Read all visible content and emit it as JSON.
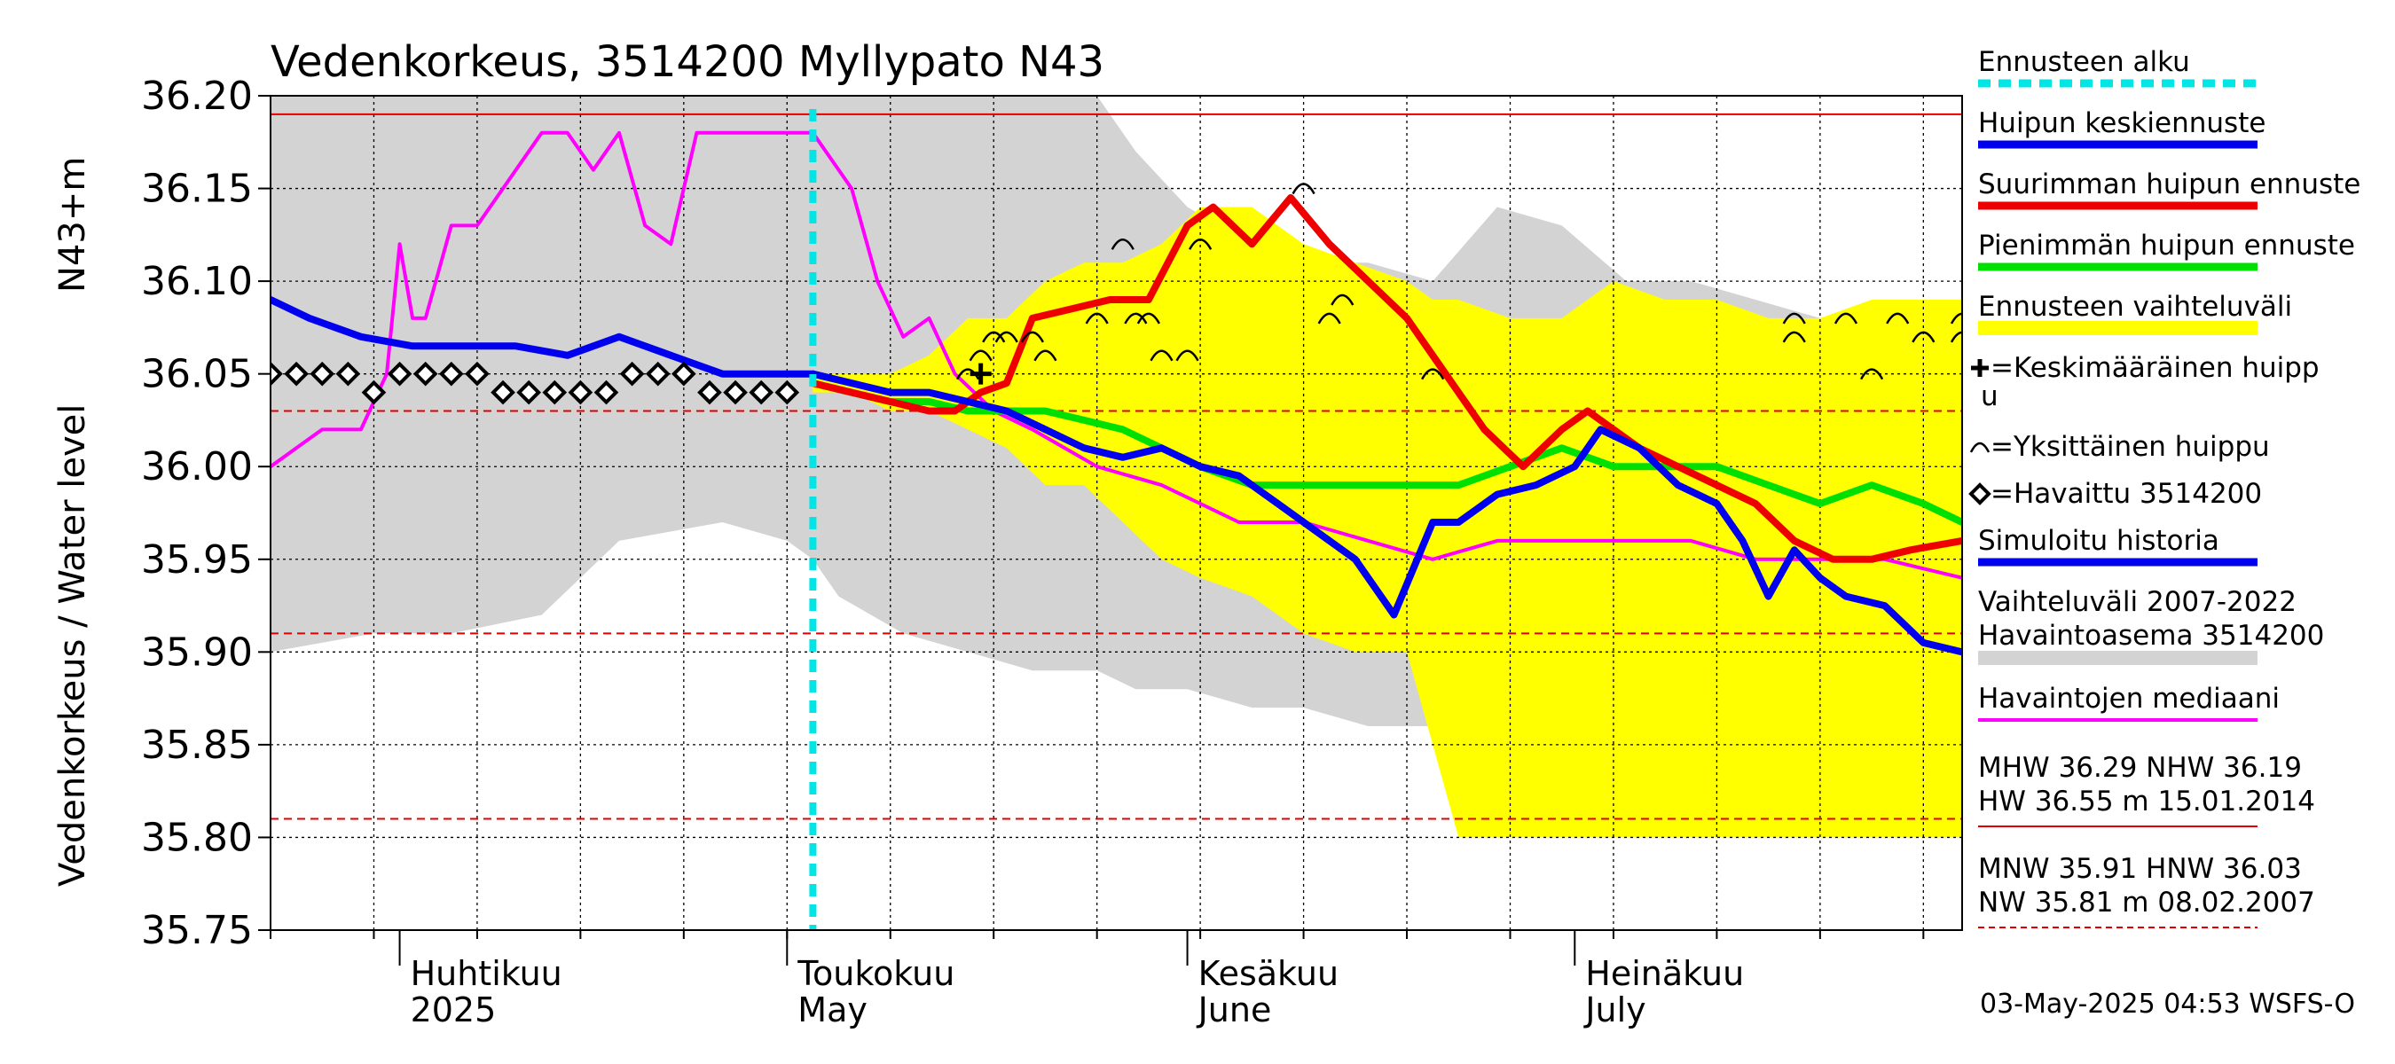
{
  "chart_data": {
    "type": "line",
    "title": "Vedenkorkeus, 3514200 Myllypato N43",
    "ylabel": "Vedenkorkeus / Water level",
    "yunit": "N43+m",
    "ylim": [
      35.75,
      36.2
    ],
    "yticks": [
      "36.20",
      "36.15",
      "36.10",
      "36.05",
      "36.00",
      "35.95",
      "35.90",
      "35.85",
      "35.80",
      "35.75"
    ],
    "xlim": [
      "2025-03-22",
      "2025-07-31"
    ],
    "forecast_start": "2025-05-03",
    "months": [
      {
        "date": "2025-04-01",
        "label_fi": "Huhtikuu",
        "label_en": "2025"
      },
      {
        "date": "2025-05-01",
        "label_fi": "Toukokuu",
        "label_en": "May"
      },
      {
        "date": "2025-06-01",
        "label_fi": "Kesäkuu",
        "label_en": "June"
      },
      {
        "date": "2025-07-01",
        "label_fi": "Heinäkuu",
        "label_en": "July"
      }
    ],
    "reference_lines": [
      {
        "name": "NHW",
        "value": 36.19,
        "style": "solid",
        "color": "#e00000"
      },
      {
        "name": "HNW",
        "value": 36.03,
        "style": "dashed",
        "color": "#e00000"
      },
      {
        "name": "MNW",
        "value": 35.91,
        "style": "dashed",
        "color": "#e00000"
      },
      {
        "name": "NW",
        "value": 35.81,
        "style": "dashed",
        "color": "#e00000"
      }
    ],
    "history_range": {
      "name": "Vaihteluväli 2007-2022 Havaintoasema 3514200",
      "color": "#d3d3d3",
      "x": [
        "2025-03-22",
        "2025-03-30",
        "2025-04-05",
        "2025-04-12",
        "2025-04-18",
        "2025-04-26",
        "2025-05-01",
        "2025-05-03",
        "2025-05-05",
        "2025-05-10",
        "2025-05-15",
        "2025-05-20",
        "2025-05-25",
        "2025-05-28",
        "2025-06-01",
        "2025-06-06",
        "2025-06-10",
        "2025-06-15",
        "2025-06-20",
        "2025-06-25",
        "2025-06-30",
        "2025-07-05",
        "2025-07-10",
        "2025-07-15",
        "2025-07-20",
        "2025-07-25",
        "2025-07-31"
      ],
      "upper": [
        36.2,
        36.2,
        36.2,
        36.2,
        36.2,
        36.2,
        36.2,
        36.2,
        36.2,
        36.2,
        36.2,
        36.2,
        36.2,
        36.17,
        36.14,
        36.12,
        36.11,
        36.11,
        36.1,
        36.14,
        36.13,
        36.1,
        36.1,
        36.09,
        36.08,
        36.08,
        36.07
      ],
      "lower": [
        35.9,
        35.91,
        35.91,
        35.92,
        35.96,
        35.97,
        35.96,
        35.95,
        35.93,
        35.91,
        35.9,
        35.89,
        35.89,
        35.88,
        35.88,
        35.87,
        35.87,
        35.86,
        35.86,
        35.86,
        35.86,
        35.86,
        35.86,
        35.86,
        35.86,
        35.86,
        35.86
      ]
    },
    "forecast_range": {
      "name": "Ennusteen vaihteluväli",
      "color": "#ffff00",
      "x": [
        "2025-05-03",
        "2025-05-06",
        "2025-05-09",
        "2025-05-12",
        "2025-05-15",
        "2025-05-18",
        "2025-05-21",
        "2025-05-24",
        "2025-05-27",
        "2025-05-30",
        "2025-06-02",
        "2025-06-06",
        "2025-06-10",
        "2025-06-14",
        "2025-06-18",
        "2025-06-20",
        "2025-06-22",
        "2025-06-26",
        "2025-06-30",
        "2025-07-04",
        "2025-07-08",
        "2025-07-12",
        "2025-07-16",
        "2025-07-20",
        "2025-07-24",
        "2025-07-28",
        "2025-07-31"
      ],
      "upper": [
        36.05,
        36.05,
        36.05,
        36.06,
        36.08,
        36.08,
        36.1,
        36.11,
        36.11,
        36.12,
        36.14,
        36.14,
        36.12,
        36.11,
        36.1,
        36.09,
        36.09,
        36.08,
        36.08,
        36.1,
        36.09,
        36.09,
        36.08,
        36.08,
        36.09,
        36.09,
        36.09
      ],
      "lower": [
        36.04,
        36.04,
        36.03,
        36.03,
        36.02,
        36.01,
        35.99,
        35.99,
        35.97,
        35.95,
        35.94,
        35.93,
        35.91,
        35.9,
        35.9,
        35.85,
        35.8,
        35.8,
        35.8,
        35.8,
        35.8,
        35.8,
        35.8,
        35.8,
        35.8,
        35.8,
        35.8
      ]
    },
    "series": [
      {
        "name": "Havaintojen mediaani",
        "color": "#ff00ff",
        "width": 4,
        "x": [
          "2025-03-22",
          "2025-03-24",
          "2025-03-26",
          "2025-03-29",
          "2025-03-31",
          "2025-04-01",
          "2025-04-02",
          "2025-04-03",
          "2025-04-05",
          "2025-04-07",
          "2025-04-09",
          "2025-04-12",
          "2025-04-14",
          "2025-04-16",
          "2025-04-18",
          "2025-04-20",
          "2025-04-22",
          "2025-04-24",
          "2025-04-26",
          "2025-04-28",
          "2025-05-01",
          "2025-05-03",
          "2025-05-06",
          "2025-05-08",
          "2025-05-10",
          "2025-05-12",
          "2025-05-14",
          "2025-05-17",
          "2025-05-20",
          "2025-05-25",
          "2025-05-30",
          "2025-06-05",
          "2025-06-10",
          "2025-06-15",
          "2025-06-20",
          "2025-06-25",
          "2025-06-30",
          "2025-07-05",
          "2025-07-10",
          "2025-07-15",
          "2025-07-20",
          "2025-07-25",
          "2025-07-31"
        ],
        "values": [
          36.0,
          36.01,
          36.02,
          36.02,
          36.05,
          36.12,
          36.08,
          36.08,
          36.13,
          36.13,
          36.15,
          36.18,
          36.18,
          36.16,
          36.18,
          36.13,
          36.12,
          36.18,
          36.18,
          36.18,
          36.18,
          36.18,
          36.15,
          36.1,
          36.07,
          36.08,
          36.05,
          36.03,
          36.02,
          36.0,
          35.99,
          35.97,
          35.97,
          35.96,
          35.95,
          35.96,
          35.96,
          35.96,
          35.96,
          35.95,
          35.95,
          35.95,
          35.94
        ]
      },
      {
        "name": "Simuloitu historia",
        "color": "#0000ee",
        "width": 8,
        "x": [
          "2025-03-22",
          "2025-03-25",
          "2025-03-29",
          "2025-04-02",
          "2025-04-06",
          "2025-04-10",
          "2025-04-14",
          "2025-04-18",
          "2025-04-22",
          "2025-04-26",
          "2025-04-30",
          "2025-05-03"
        ],
        "values": [
          36.09,
          36.08,
          36.07,
          36.065,
          36.065,
          36.065,
          36.06,
          36.07,
          36.06,
          36.05,
          36.05,
          36.05
        ]
      },
      {
        "name": "Pienimmän huipun ennuste",
        "color": "#00e000",
        "width": 8,
        "x": [
          "2025-05-03",
          "2025-05-06",
          "2025-05-09",
          "2025-05-12",
          "2025-05-15",
          "2025-05-18",
          "2025-05-21",
          "2025-05-24",
          "2025-05-27",
          "2025-05-30",
          "2025-06-02",
          "2025-06-06",
          "2025-06-10",
          "2025-06-14",
          "2025-06-18",
          "2025-06-22",
          "2025-06-26",
          "2025-06-30",
          "2025-07-04",
          "2025-07-08",
          "2025-07-12",
          "2025-07-16",
          "2025-07-20",
          "2025-07-24",
          "2025-07-28",
          "2025-07-31"
        ],
        "values": [
          36.045,
          36.04,
          36.035,
          36.035,
          36.03,
          36.03,
          36.03,
          36.025,
          36.02,
          36.01,
          36.0,
          35.99,
          35.99,
          35.99,
          35.99,
          35.99,
          36.0,
          36.01,
          36.0,
          36.0,
          36.0,
          35.99,
          35.98,
          35.99,
          35.98,
          35.97
        ]
      },
      {
        "name": "Suurimman huipun ennuste",
        "color": "#ee0000",
        "width": 8,
        "x": [
          "2025-05-03",
          "2025-05-06",
          "2025-05-09",
          "2025-05-12",
          "2025-05-14",
          "2025-05-16",
          "2025-05-18",
          "2025-05-20",
          "2025-05-23",
          "2025-05-26",
          "2025-05-29",
          "2025-06-01",
          "2025-06-03",
          "2025-06-06",
          "2025-06-09",
          "2025-06-12",
          "2025-06-15",
          "2025-06-18",
          "2025-06-21",
          "2025-06-24",
          "2025-06-27",
          "2025-06-30",
          "2025-07-02",
          "2025-07-04",
          "2025-07-06",
          "2025-07-09",
          "2025-07-12",
          "2025-07-15",
          "2025-07-18",
          "2025-07-21",
          "2025-07-24",
          "2025-07-27",
          "2025-07-31"
        ],
        "values": [
          36.045,
          36.04,
          36.035,
          36.03,
          36.03,
          36.04,
          36.045,
          36.08,
          36.085,
          36.09,
          36.09,
          36.13,
          36.14,
          36.12,
          36.145,
          36.12,
          36.1,
          36.08,
          36.05,
          36.02,
          36.0,
          36.02,
          36.03,
          36.02,
          36.01,
          36.0,
          35.99,
          35.98,
          35.96,
          35.95,
          35.95,
          35.955,
          35.96
        ]
      },
      {
        "name": "Huipun keskiennuste",
        "color": "#0000ee",
        "width": 8,
        "x": [
          "2025-05-03",
          "2025-05-06",
          "2025-05-09",
          "2025-05-12",
          "2025-05-15",
          "2025-05-18",
          "2025-05-21",
          "2025-05-24",
          "2025-05-27",
          "2025-05-30",
          "2025-06-02",
          "2025-06-05",
          "2025-06-08",
          "2025-06-11",
          "2025-06-14",
          "2025-06-17",
          "2025-06-20",
          "2025-06-22",
          "2025-06-25",
          "2025-06-28",
          "2025-07-01",
          "2025-07-03",
          "2025-07-06",
          "2025-07-09",
          "2025-07-12",
          "2025-07-14",
          "2025-07-16",
          "2025-07-18",
          "2025-07-20",
          "2025-07-22",
          "2025-07-25",
          "2025-07-28",
          "2025-07-31"
        ],
        "values": [
          36.05,
          36.045,
          36.04,
          36.04,
          36.035,
          36.03,
          36.02,
          36.01,
          36.005,
          36.01,
          36.0,
          35.995,
          35.98,
          35.965,
          35.95,
          35.92,
          35.97,
          35.97,
          35.985,
          35.99,
          36.0,
          36.02,
          36.01,
          35.99,
          35.98,
          35.96,
          35.93,
          35.955,
          35.94,
          35.93,
          35.925,
          35.905,
          35.9
        ]
      }
    ],
    "observed": {
      "name": "Havaittu 3514200",
      "marker": "diamond",
      "x": [
        "2025-03-22",
        "2025-03-24",
        "2025-03-26",
        "2025-03-28",
        "2025-03-30",
        "2025-04-01",
        "2025-04-03",
        "2025-04-05",
        "2025-04-07",
        "2025-04-09",
        "2025-04-11",
        "2025-04-13",
        "2025-04-15",
        "2025-04-17",
        "2025-04-19",
        "2025-04-21",
        "2025-04-23",
        "2025-04-25",
        "2025-04-27",
        "2025-04-29",
        "2025-05-01"
      ],
      "values": [
        36.05,
        36.05,
        36.05,
        36.05,
        36.04,
        36.05,
        36.05,
        36.05,
        36.05,
        36.04,
        36.04,
        36.04,
        36.04,
        36.04,
        36.05,
        36.05,
        36.05,
        36.04,
        36.04,
        36.04,
        36.04
      ]
    },
    "single_peaks": {
      "name": "Yksittäinen huippu",
      "x": [
        "2025-05-15",
        "2025-05-16",
        "2025-05-17",
        "2025-05-18",
        "2025-05-20",
        "2025-05-21",
        "2025-05-25",
        "2025-05-27",
        "2025-05-28",
        "2025-05-29",
        "2025-05-30",
        "2025-06-01",
        "2025-06-02",
        "2025-06-10",
        "2025-06-12",
        "2025-06-13",
        "2025-06-20",
        "2025-07-18",
        "2025-07-18",
        "2025-07-22",
        "2025-07-24",
        "2025-07-26",
        "2025-07-28",
        "2025-07-31",
        "2025-07-31"
      ],
      "values": [
        36.05,
        36.06,
        36.07,
        36.07,
        36.07,
        36.06,
        36.08,
        36.12,
        36.08,
        36.08,
        36.06,
        36.06,
        36.12,
        36.15,
        36.08,
        36.09,
        36.05,
        36.08,
        36.07,
        36.08,
        36.05,
        36.08,
        36.07,
        36.08,
        36.07
      ]
    },
    "mean_peak": {
      "name": "Keskimääräinen huippu",
      "x": "2025-05-16",
      "value": 36.05
    },
    "legend": [
      {
        "label": "Ennusteen alku",
        "kind": "dashed",
        "color": "#00e5e5"
      },
      {
        "label": "Huipun keskiennuste",
        "kind": "line",
        "color": "#0000ee"
      },
      {
        "label": "Suurimman huipun ennuste",
        "kind": "line",
        "color": "#ee0000"
      },
      {
        "label": "Pienimmän huipun ennuste",
        "kind": "line",
        "color": "#00e000"
      },
      {
        "label": "Ennusteen vaihteluväli",
        "kind": "band",
        "color": "#ffff00"
      },
      {
        "label": "=Keskimääräinen huipp",
        "label2": "u",
        "kind": "cross",
        "color": "#000000"
      },
      {
        "label": "=Yksittäinen huippu",
        "kind": "arc",
        "color": "#000000"
      },
      {
        "label": "=Havaittu 3514200",
        "kind": "diamond",
        "color": "#000000"
      },
      {
        "label": "Simuloitu historia",
        "kind": "line",
        "color": "#0000ee"
      },
      {
        "label": "Vaihteluväli 2007-2022",
        "label2": " Havaintoasema 3514200",
        "kind": "band",
        "color": "#d3d3d3"
      },
      {
        "label": "Havaintojen mediaani",
        "kind": "thin",
        "color": "#ff00ff"
      }
    ],
    "stats": [
      {
        "line1": "MHW  36.29 NHW  36.19",
        "line2": "HW  36.55 m 15.01.2014",
        "color": "#e00000",
        "dashed": false
      },
      {
        "line1": "MNW  35.91 HNW  36.03",
        "line2": "NW  35.81 m 08.02.2007",
        "color": "#e00000",
        "dashed": true
      }
    ],
    "footer": "03-May-2025 04:53 WSFS-O",
    "grid": true
  }
}
